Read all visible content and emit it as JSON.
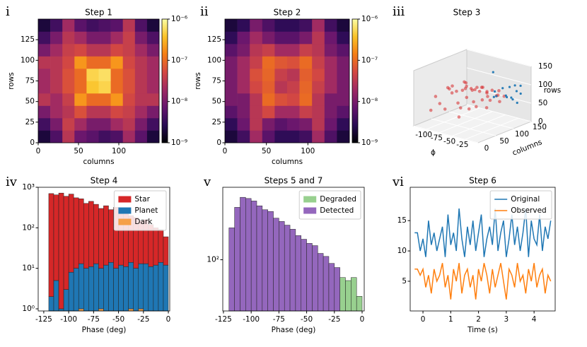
{
  "chart_data": [
    {
      "type": "heatmap",
      "label": "i",
      "title": "Step 1",
      "xlabel": "columns",
      "ylabel": "rows",
      "xlim": [
        0,
        150
      ],
      "ylim": [
        0,
        150
      ],
      "xticks": [
        0,
        50,
        100
      ],
      "yticks": [
        0,
        25,
        50,
        75,
        100,
        125
      ],
      "colormap": "inferno",
      "clim": [
        1e-09,
        1e-06
      ],
      "cticks": [
        {
          "value": 1e-09,
          "label": "10⁻⁹"
        },
        {
          "value": 1e-08,
          "label": "10⁻⁸"
        },
        {
          "value": 1e-07,
          "label": "10⁻⁷"
        },
        {
          "value": 1e-06,
          "label": "10⁻⁶"
        }
      ],
      "z": [
        [
          2e-09,
          5e-09,
          3e-08,
          8e-09,
          6e-09,
          4e-09,
          5e-09,
          2e-08,
          6e-09,
          2e-09
        ],
        [
          4e-09,
          1e-08,
          4e-08,
          2e-08,
          1e-08,
          1e-08,
          2e-08,
          3e-08,
          1e-08,
          4e-09
        ],
        [
          1e-08,
          2e-08,
          3e-08,
          6e-08,
          3e-08,
          3e-08,
          5e-08,
          4e-08,
          2e-08,
          1e-08
        ],
        [
          3e-08,
          2e-08,
          4e-08,
          2e-07,
          1e-07,
          1e-07,
          2e-07,
          5e-08,
          3e-08,
          3e-08
        ],
        [
          2e-08,
          3e-08,
          6e-08,
          1e-07,
          4e-07,
          5e-07,
          1e-07,
          6e-08,
          3e-08,
          2e-08
        ],
        [
          2e-08,
          3e-08,
          6e-08,
          1e-07,
          5e-07,
          6e-07,
          1e-07,
          6e-08,
          3e-08,
          2e-08
        ],
        [
          3e-08,
          3e-08,
          5e-08,
          2e-07,
          1e-07,
          1e-07,
          2e-07,
          5e-08,
          3e-08,
          2e-08
        ],
        [
          1e-08,
          2e-08,
          4e-08,
          5e-08,
          3e-08,
          3e-08,
          5e-08,
          4e-08,
          2e-08,
          1e-08
        ],
        [
          4e-09,
          1e-08,
          3e-08,
          2e-08,
          1e-08,
          1e-08,
          2e-08,
          4e-08,
          1e-08,
          5e-09
        ],
        [
          2e-09,
          4e-09,
          2e-08,
          6e-09,
          4e-09,
          5e-09,
          6e-09,
          3e-08,
          5e-09,
          2e-09
        ]
      ]
    },
    {
      "type": "heatmap",
      "label": "ii",
      "title": "Step 2",
      "xlabel": "columns",
      "ylabel": "rows",
      "xlim": [
        0,
        150
      ],
      "ylim": [
        0,
        150
      ],
      "xticks": [
        0,
        50,
        100
      ],
      "yticks": [
        0,
        25,
        50,
        75,
        100,
        125
      ],
      "colormap": "inferno",
      "clim": [
        1e-09,
        1e-06
      ],
      "cticks": [
        {
          "value": 1e-09,
          "label": "10⁻⁹"
        },
        {
          "value": 1e-08,
          "label": "10⁻⁸"
        },
        {
          "value": 1e-07,
          "label": "10⁻⁷"
        },
        {
          "value": 1e-06,
          "label": "10⁻⁶"
        }
      ],
      "z": [
        [
          2e-09,
          4e-09,
          2e-08,
          6e-09,
          3e-09,
          3e-09,
          4e-09,
          2e-08,
          5e-09,
          2e-09
        ],
        [
          3e-09,
          8e-09,
          3e-08,
          1e-08,
          6e-09,
          8e-09,
          1e-08,
          3e-08,
          8e-09,
          3e-09
        ],
        [
          6e-09,
          1e-08,
          3e-08,
          5e-08,
          2e-08,
          2e-08,
          4e-08,
          3e-08,
          1e-08,
          6e-09
        ],
        [
          1e-08,
          1e-08,
          3e-08,
          1e-07,
          6e-08,
          5e-08,
          1e-07,
          3e-08,
          1e-08,
          1e-08
        ],
        [
          1e-08,
          2e-08,
          5e-08,
          8e-08,
          3e-08,
          4e-08,
          9e-08,
          4e-08,
          2e-08,
          1e-08
        ],
        [
          1e-08,
          2e-08,
          6e-08,
          9e-08,
          4e-08,
          3e-08,
          8e-08,
          5e-08,
          2e-08,
          1e-08
        ],
        [
          1e-08,
          2e-08,
          4e-08,
          1e-07,
          7e-08,
          6e-08,
          1e-07,
          4e-08,
          2e-08,
          1e-08
        ],
        [
          6e-09,
          1e-08,
          3e-08,
          4e-08,
          2e-08,
          2e-08,
          4e-08,
          3e-08,
          1e-08,
          6e-09
        ],
        [
          3e-09,
          8e-09,
          2e-08,
          1e-08,
          6e-09,
          6e-09,
          1e-08,
          3e-08,
          8e-09,
          3e-09
        ],
        [
          2e-09,
          3e-09,
          1e-08,
          5e-09,
          3e-09,
          3e-09,
          4e-09,
          2e-08,
          4e-09,
          2e-09
        ]
      ]
    },
    {
      "type": "scatter3d",
      "label": "iii",
      "title": "Step 3",
      "xlabel": "ϕ",
      "ylabel": "columns",
      "zlabel": "rows",
      "xlim": [
        -125,
        0
      ],
      "ylim": [
        0,
        150
      ],
      "zlim": [
        0,
        150
      ],
      "xticks": [
        -100,
        -75,
        -50,
        -25
      ],
      "yticks": [
        0,
        50,
        100,
        150
      ],
      "zticks": [
        0,
        50,
        100,
        150
      ],
      "series": [
        {
          "color": "#d62728",
          "x": [
            -110,
            -105,
            -100,
            -98,
            -95,
            -92,
            -90,
            -88,
            -85,
            -82,
            -80,
            -78,
            -75,
            -72,
            -70,
            -68,
            -65,
            -62,
            -60,
            -58,
            -55,
            -52,
            -50,
            -48,
            -45,
            -42,
            -40,
            -38,
            -35,
            -30,
            -28,
            -25,
            -20,
            -102,
            -87,
            -73,
            -57,
            -44,
            -33,
            -66
          ],
          "y": [
            40,
            80,
            60,
            110,
            30,
            95,
            70,
            125,
            50,
            85,
            100,
            20,
            65,
            115,
            45,
            90,
            75,
            130,
            55,
            35,
            105,
            80,
            60,
            95,
            40,
            120,
            70,
            50,
            85,
            100,
            65,
            110,
            90,
            15,
            140,
            25,
            135,
            10,
            75,
            60
          ],
          "z": [
            70,
            85,
            90,
            75,
            60,
            95,
            80,
            70,
            85,
            100,
            75,
            55,
            90,
            80,
            65,
            85,
            95,
            70,
            80,
            60,
            75,
            90,
            70,
            85,
            60,
            80,
            75,
            65,
            70,
            80,
            60,
            75,
            70,
            45,
            65,
            110,
            55,
            50,
            85,
            100
          ]
        },
        {
          "color": "#1f77b4",
          "x": [
            -50,
            -45,
            -40,
            -35,
            -30,
            -28,
            -25,
            -22,
            -20,
            -18,
            -15,
            -12,
            -10,
            -38,
            -60
          ],
          "y": [
            120,
            135,
            110,
            140,
            125,
            145,
            115,
            130,
            138,
            120,
            142,
            128,
            135,
            100,
            130
          ],
          "z": [
            75,
            80,
            70,
            85,
            65,
            90,
            75,
            60,
            80,
            70,
            95,
            55,
            78,
            72,
            120
          ]
        }
      ]
    },
    {
      "type": "histogram",
      "label": "iv",
      "title": "Step 4",
      "xlabel": "Phase (deg)",
      "xlim": [
        -130.6,
        1.4
      ],
      "ylim": [
        0.886,
        1000
      ],
      "ylog": true,
      "legend": "upper right",
      "xticks": [
        -125,
        -100,
        -75,
        -50,
        -25,
        0
      ],
      "yticks": [
        {
          "value": 1,
          "label": "10⁰"
        },
        {
          "value": 10,
          "label": "10¹"
        },
        {
          "value": 100,
          "label": "10²"
        },
        {
          "value": 1000,
          "label": "10³"
        }
      ],
      "bins": [
        -120,
        -115,
        -110,
        -105,
        -100,
        -95,
        -90,
        -85,
        -80,
        -75,
        -70,
        -65,
        -60,
        -55,
        -50,
        -45,
        -40,
        -35,
        -30,
        -25,
        -20,
        -15,
        -10,
        -5,
        0
      ],
      "series": [
        {
          "name": "Star",
          "color": "#d62728",
          "values": [
            698,
            645,
            719,
            597,
            672,
            540,
            507,
            390,
            439,
            367,
            290,
            338,
            266,
            310,
            208,
            239,
            186,
            170,
            137,
            147,
            109,
            88,
            76,
            48
          ]
        },
        {
          "name": "Planet",
          "color": "#1f77b4",
          "values": [
            2,
            5,
            1,
            3,
            8,
            10,
            12,
            10,
            11,
            13,
            9,
            12,
            14,
            10,
            12,
            11,
            13,
            10,
            12,
            13,
            11,
            12,
            14,
            12
          ]
        },
        {
          "name": "Dark",
          "color": "#f5a04a",
          "values": [
            0,
            0,
            0,
            0,
            0,
            0,
            1,
            0,
            0,
            0,
            1,
            0,
            0,
            0,
            0,
            0,
            1,
            0,
            1,
            0,
            0,
            0,
            0,
            0
          ]
        }
      ]
    },
    {
      "type": "histogram",
      "label": "v",
      "title": "Steps 5 and 7",
      "xlabel": "Phase (deg)",
      "xlim": [
        -125.6,
        1.9
      ],
      "ylim": [
        23,
        800
      ],
      "ylog": true,
      "legend": "upper right",
      "xticks": [
        -125,
        -100,
        -75,
        -50,
        -25,
        0
      ],
      "yticks": [
        {
          "value": 100,
          "label": "10²"
        }
      ],
      "bins": [
        -120,
        -115,
        -110,
        -105,
        -100,
        -95,
        -90,
        -85,
        -80,
        -75,
        -70,
        -65,
        -60,
        -55,
        -50,
        -45,
        -40,
        -35,
        -30,
        -25,
        -20,
        -15,
        -10,
        -5,
        0
      ],
      "series": [
        {
          "name": "Degraded",
          "color": "#98d08f",
          "values": [
            0,
            0,
            0,
            0,
            0,
            0,
            0,
            0,
            0,
            0,
            0,
            0,
            0,
            0,
            0,
            0,
            0,
            0,
            0,
            0,
            60,
            55,
            60,
            35
          ]
        },
        {
          "name": "Detected",
          "color": "#9467bd",
          "values": [
            250,
            450,
            600,
            580,
            540,
            470,
            420,
            400,
            330,
            300,
            270,
            240,
            200,
            180,
            160,
            150,
            120,
            110,
            90,
            80,
            0,
            0,
            0,
            0
          ]
        }
      ]
    },
    {
      "type": "line",
      "label": "vi",
      "title": "Step 6",
      "xlabel": "Time (s)",
      "xlim": [
        -0.46,
        4.76
      ],
      "ylim": [
        0.1,
        20.5
      ],
      "legend": "upper right",
      "xticks": [
        0,
        1,
        2,
        3,
        4
      ],
      "yticks": [
        5,
        10,
        15
      ],
      "x": [
        -0.3,
        -0.2,
        -0.1,
        0,
        0.1,
        0.2,
        0.3,
        0.4,
        0.5,
        0.6,
        0.7,
        0.8,
        0.9,
        1,
        1.1,
        1.2,
        1.3,
        1.4,
        1.5,
        1.6,
        1.7,
        1.8,
        1.9,
        2,
        2.1,
        2.2,
        2.3,
        2.4,
        2.5,
        2.6,
        2.7,
        2.8,
        2.9,
        3,
        3.1,
        3.2,
        3.3,
        3.4,
        3.5,
        3.6,
        3.7,
        3.8,
        3.9,
        4,
        4.1,
        4.2,
        4.3,
        4.4,
        4.5,
        4.6
      ],
      "series": [
        {
          "name": "Original",
          "color": "#1f77b4",
          "values": [
            13,
            13,
            10,
            12,
            9,
            15,
            11,
            13,
            10,
            12,
            14,
            9,
            16,
            11,
            13,
            10,
            17,
            12,
            9,
            14,
            11,
            15,
            10,
            13,
            16,
            9,
            12,
            14,
            11,
            17,
            10,
            13,
            15,
            9,
            12,
            16,
            11,
            14,
            10,
            13,
            17,
            9,
            15,
            12,
            11,
            16,
            10,
            14,
            12,
            15
          ]
        },
        {
          "name": "Observed",
          "color": "#ff7f0e",
          "values": [
            7,
            7,
            6,
            7,
            4,
            6,
            3,
            7,
            5,
            6,
            8,
            4,
            6,
            2,
            7,
            5,
            8,
            3,
            6,
            7,
            4,
            6,
            2,
            7,
            5,
            8,
            6,
            3,
            7,
            4,
            6,
            8,
            5,
            2,
            7,
            6,
            4,
            8,
            5,
            6,
            3,
            7,
            5,
            8,
            4,
            6,
            7,
            3,
            6,
            5
          ]
        }
      ]
    }
  ]
}
